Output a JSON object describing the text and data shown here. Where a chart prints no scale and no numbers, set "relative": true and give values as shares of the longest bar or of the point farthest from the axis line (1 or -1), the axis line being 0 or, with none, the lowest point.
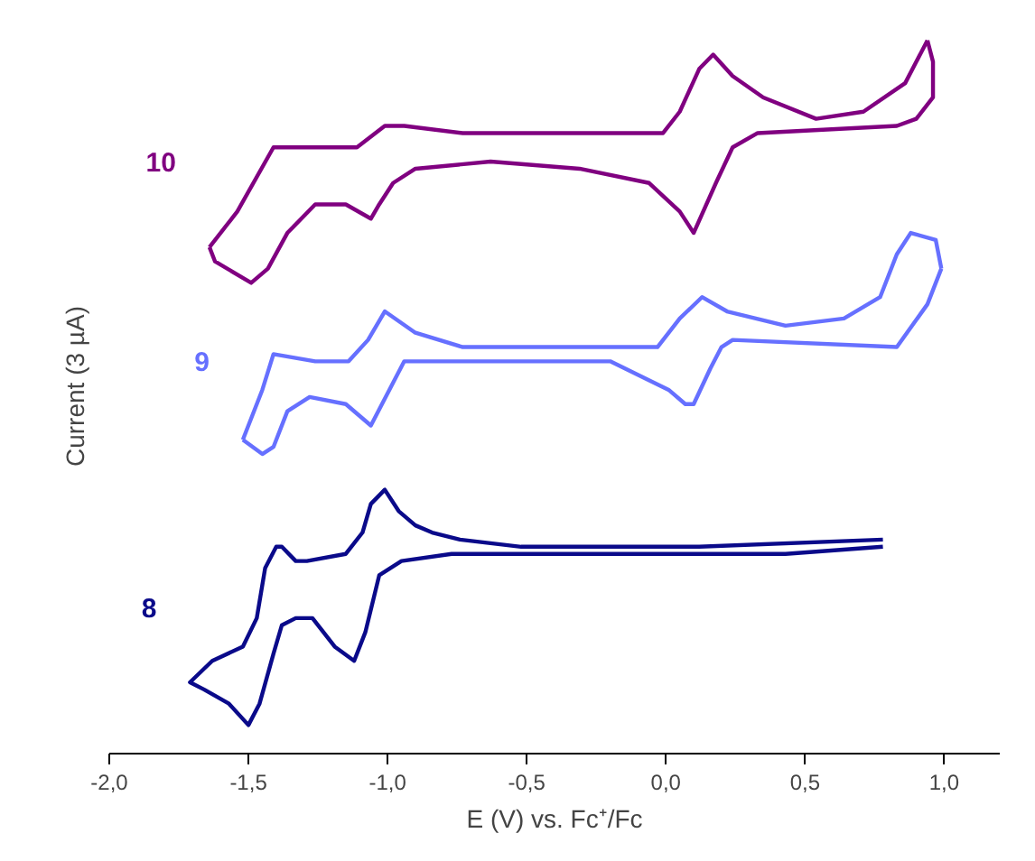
{
  "chart_data": {
    "type": "line",
    "relative": true,
    "xlabel": "E (V) vs. Fc⁺/Fc",
    "ylabel": "Current (3 µA)",
    "xlim": [
      -2.0,
      1.2
    ],
    "xticks": [
      {
        "value": -2.0,
        "label": "-2,0"
      },
      {
        "value": -1.5,
        "label": "-1,5"
      },
      {
        "value": -1.0,
        "label": "-1,0"
      },
      {
        "value": -0.5,
        "label": "-0,5"
      },
      {
        "value": 0.0,
        "label": "0,0"
      },
      {
        "value": 0.5,
        "label": "0,5"
      },
      {
        "value": 1.0,
        "label": "1,0"
      }
    ],
    "grid": false,
    "line_style": "solid",
    "marker": "none",
    "tick_labels": "x",
    "series": [
      {
        "name": "10",
        "color": "#800080",
        "x": [
          0.94,
          0.96,
          0.96,
          0.9,
          0.83,
          0.33,
          0.24,
          0.18,
          0.1,
          0.05,
          -0.06,
          -0.31,
          -0.63,
          -0.9,
          -0.98,
          -1.03,
          -1.06,
          -1.15,
          -1.26,
          -1.36,
          -1.43,
          -1.49,
          -1.62,
          -1.64
        ],
        "values": [
          1.0,
          0.97,
          0.92,
          0.89,
          0.88,
          0.87,
          0.85,
          0.8,
          0.73,
          0.76,
          0.8,
          0.82,
          0.83,
          0.82,
          0.8,
          0.77,
          0.75,
          0.77,
          0.77,
          0.73,
          0.68,
          0.66,
          0.69,
          0.71
        ]
      },
      {
        "color": "#800080",
        "x": [
          -1.64,
          -1.54,
          -1.41,
          -1.26,
          -1.11,
          -1.01,
          -0.94,
          -0.73,
          -0.31,
          -0.01,
          0.05,
          0.12,
          0.17,
          0.24,
          0.35,
          0.54,
          0.71,
          0.86,
          0.94
        ],
        "values": [
          0.71,
          0.76,
          0.85,
          0.85,
          0.85,
          0.88,
          0.88,
          0.87,
          0.87,
          0.87,
          0.9,
          0.96,
          0.98,
          0.95,
          0.92,
          0.89,
          0.9,
          0.94,
          1.0
        ]
      },
      {
        "name": "9",
        "color": "#6670ff",
        "x": [
          0.99,
          0.94,
          0.83,
          0.24,
          0.2,
          0.16,
          0.1,
          0.07,
          0.01,
          -0.2,
          -0.84,
          -0.94,
          -0.98,
          -1.06,
          -1.15,
          -1.28,
          -1.36,
          -1.41,
          -1.45,
          -1.52
        ],
        "values": [
          0.68,
          0.63,
          0.57,
          0.58,
          0.57,
          0.54,
          0.49,
          0.49,
          0.51,
          0.55,
          0.55,
          0.55,
          0.52,
          0.46,
          0.49,
          0.5,
          0.48,
          0.43,
          0.42,
          0.44
        ]
      },
      {
        "color": "#6670ff",
        "x": [
          -1.52,
          -1.45,
          -1.41,
          -1.26,
          -1.14,
          -1.07,
          -1.01,
          -0.9,
          -0.73,
          -0.31,
          -0.03,
          0.05,
          0.13,
          0.22,
          0.43,
          0.64,
          0.77,
          0.83,
          0.88,
          0.97,
          0.99
        ],
        "values": [
          0.44,
          0.51,
          0.56,
          0.55,
          0.55,
          0.58,
          0.62,
          0.59,
          0.57,
          0.57,
          0.57,
          0.61,
          0.64,
          0.62,
          0.6,
          0.61,
          0.64,
          0.7,
          0.73,
          0.72,
          0.68
        ]
      },
      {
        "name": "8",
        "color": "#0a0a8a",
        "x": [
          0.78,
          0.12,
          -0.52,
          -0.74,
          -0.84,
          -0.9,
          -0.96,
          -1.01,
          -1.06,
          -1.09,
          -1.15,
          -1.29,
          -1.33,
          -1.38,
          -1.4,
          -1.44,
          -1.47,
          -1.52,
          -1.63,
          -1.71,
          -1.66,
          -1.57,
          -1.5,
          -1.46,
          -1.41,
          -1.38,
          -1.33,
          -1.27,
          -1.19,
          -1.12,
          -1.08,
          -1.03,
          -0.95,
          -0.77,
          -0.2,
          0.43,
          0.78
        ],
        "values": [
          0.3,
          0.29,
          0.29,
          0.3,
          0.31,
          0.32,
          0.34,
          0.37,
          0.35,
          0.31,
          0.28,
          0.27,
          0.27,
          0.29,
          0.29,
          0.26,
          0.19,
          0.15,
          0.13,
          0.1,
          0.09,
          0.07,
          0.04,
          0.07,
          0.14,
          0.18,
          0.19,
          0.19,
          0.15,
          0.13,
          0.17,
          0.25,
          0.27,
          0.28,
          0.28,
          0.28,
          0.29
        ]
      }
    ]
  }
}
